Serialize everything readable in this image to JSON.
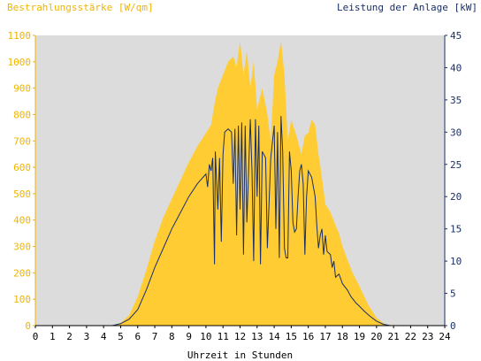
{
  "chart_data": {
    "type": "area",
    "title_left": "Bestrahlungsstärke [W/qm]",
    "title_right": "Leistung der Anlage [kW]",
    "xlabel": "Uhrzeit in Stunden",
    "grid": false,
    "colors": {
      "irradiance": "#ffcc33",
      "power": "#1a2f66",
      "plot_bg": "#dcdcdc",
      "left_axis_text": "#f0b400",
      "right_axis_text": "#1a2f66"
    },
    "x_axis": {
      "min": 0,
      "max": 24,
      "ticks": [
        0,
        1,
        2,
        3,
        4,
        5,
        6,
        7,
        8,
        9,
        10,
        11,
        12,
        13,
        14,
        15,
        16,
        17,
        18,
        19,
        20,
        21,
        22,
        23,
        24
      ]
    },
    "y_left": {
      "min": 0,
      "max": 1100,
      "ticks": [
        0,
        100,
        200,
        300,
        400,
        500,
        600,
        700,
        800,
        900,
        1000,
        1100
      ]
    },
    "y_right": {
      "min": 0,
      "max": 45,
      "ticks": [
        0,
        5,
        10,
        15,
        20,
        25,
        30,
        35,
        40,
        45
      ]
    },
    "series": [
      {
        "name": "Bestrahlungsstärke",
        "axis": "left",
        "type": "area",
        "points": [
          [
            0,
            0
          ],
          [
            4.5,
            0
          ],
          [
            5,
            10
          ],
          [
            5.5,
            40
          ],
          [
            6,
            110
          ],
          [
            6.5,
            210
          ],
          [
            7,
            320
          ],
          [
            7.5,
            410
          ],
          [
            8,
            480
          ],
          [
            8.5,
            550
          ],
          [
            9,
            620
          ],
          [
            9.5,
            680
          ],
          [
            10,
            730
          ],
          [
            10.3,
            760
          ],
          [
            10.5,
            840
          ],
          [
            10.7,
            900
          ],
          [
            11,
            950
          ],
          [
            11.3,
            1000
          ],
          [
            11.6,
            1020
          ],
          [
            11.8,
            980
          ],
          [
            12,
            1080
          ],
          [
            12.2,
            950
          ],
          [
            12.4,
            1040
          ],
          [
            12.6,
            900
          ],
          [
            12.8,
            1000
          ],
          [
            13,
            820
          ],
          [
            13.3,
            900
          ],
          [
            13.6,
            800
          ],
          [
            13.8,
            700
          ],
          [
            14,
            950
          ],
          [
            14.2,
            1000
          ],
          [
            14.4,
            1080
          ],
          [
            14.6,
            950
          ],
          [
            14.8,
            700
          ],
          [
            15,
            780
          ],
          [
            15.3,
            720
          ],
          [
            15.6,
            650
          ],
          [
            15.8,
            720
          ],
          [
            16,
            730
          ],
          [
            16.2,
            780
          ],
          [
            16.4,
            760
          ],
          [
            16.6,
            650
          ],
          [
            16.8,
            560
          ],
          [
            17,
            460
          ],
          [
            17.3,
            430
          ],
          [
            17.6,
            380
          ],
          [
            17.8,
            350
          ],
          [
            18,
            300
          ],
          [
            18.3,
            250
          ],
          [
            18.6,
            200
          ],
          [
            19,
            150
          ],
          [
            19.5,
            80
          ],
          [
            20,
            30
          ],
          [
            20.5,
            5
          ],
          [
            21,
            0
          ],
          [
            24,
            0
          ]
        ]
      },
      {
        "name": "Leistung",
        "axis": "right",
        "type": "line",
        "points": [
          [
            0,
            0
          ],
          [
            4.5,
            0
          ],
          [
            5,
            0.3
          ],
          [
            5.5,
            1
          ],
          [
            6,
            2.5
          ],
          [
            6.5,
            5.5
          ],
          [
            7,
            9
          ],
          [
            7.5,
            12
          ],
          [
            8,
            15
          ],
          [
            8.5,
            17.5
          ],
          [
            9,
            20
          ],
          [
            9.5,
            22
          ],
          [
            10,
            23.5
          ],
          [
            10.1,
            21.5
          ],
          [
            10.2,
            25
          ],
          [
            10.3,
            24
          ],
          [
            10.4,
            26
          ],
          [
            10.5,
            9.5
          ],
          [
            10.55,
            27
          ],
          [
            10.7,
            18
          ],
          [
            10.8,
            26
          ],
          [
            10.9,
            13
          ],
          [
            11,
            26.5
          ],
          [
            11.1,
            30
          ],
          [
            11.3,
            30.5
          ],
          [
            11.5,
            30
          ],
          [
            11.6,
            22
          ],
          [
            11.7,
            30.5
          ],
          [
            11.8,
            14
          ],
          [
            11.9,
            31
          ],
          [
            12,
            18
          ],
          [
            12.1,
            31.5
          ],
          [
            12.2,
            11
          ],
          [
            12.3,
            31
          ],
          [
            12.4,
            16
          ],
          [
            12.6,
            32
          ],
          [
            12.7,
            24
          ],
          [
            12.8,
            10
          ],
          [
            12.9,
            32
          ],
          [
            13,
            20
          ],
          [
            13.1,
            31
          ],
          [
            13.2,
            9.5
          ],
          [
            13.3,
            27
          ],
          [
            13.5,
            26
          ],
          [
            13.6,
            12
          ],
          [
            13.8,
            26
          ],
          [
            14,
            31
          ],
          [
            14.1,
            15
          ],
          [
            14.2,
            30
          ],
          [
            14.3,
            10.5
          ],
          [
            14.4,
            32.5
          ],
          [
            14.5,
            27
          ],
          [
            14.6,
            12
          ],
          [
            14.7,
            10.5
          ],
          [
            14.8,
            10.5
          ],
          [
            14.9,
            27
          ],
          [
            15,
            24
          ],
          [
            15.1,
            16
          ],
          [
            15.2,
            14.5
          ],
          [
            15.3,
            15
          ],
          [
            15.4,
            20
          ],
          [
            15.5,
            24
          ],
          [
            15.6,
            25
          ],
          [
            15.7,
            22
          ],
          [
            15.8,
            11
          ],
          [
            15.9,
            20
          ],
          [
            16,
            24
          ],
          [
            16.2,
            23
          ],
          [
            16.4,
            20
          ],
          [
            16.5,
            15.5
          ],
          [
            16.6,
            12
          ],
          [
            16.7,
            14
          ],
          [
            16.8,
            15
          ],
          [
            16.9,
            11
          ],
          [
            17,
            14
          ],
          [
            17.1,
            11.5
          ],
          [
            17.3,
            11
          ],
          [
            17.4,
            9
          ],
          [
            17.5,
            10
          ],
          [
            17.6,
            7.5
          ],
          [
            17.8,
            8
          ],
          [
            18,
            6.5
          ],
          [
            18.3,
            5.5
          ],
          [
            18.5,
            4.5
          ],
          [
            18.8,
            3.5
          ],
          [
            19,
            3
          ],
          [
            19.3,
            2.2
          ],
          [
            19.6,
            1.5
          ],
          [
            20,
            0.7
          ],
          [
            20.4,
            0.2
          ],
          [
            20.8,
            0
          ],
          [
            24,
            0
          ]
        ]
      }
    ]
  }
}
